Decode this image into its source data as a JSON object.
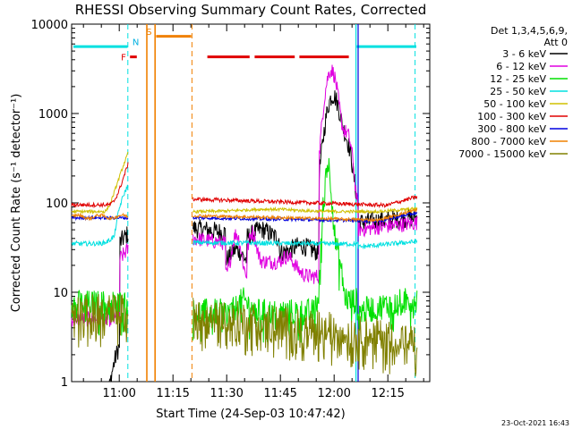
{
  "chart_data": {
    "type": "line",
    "title": "RHESSI Observing Summary Count Rates, Corrected",
    "xlabel": "Start Time (24-Sep-03 10:47:42)",
    "ylabel": "Corrected Count Rate (s⁻¹ detector⁻¹)",
    "yscale": "log",
    "ylim": [
      1,
      10000
    ],
    "xlim_min": [
      0,
      100
    ],
    "y_ticks": [
      "1",
      "10",
      "100",
      "1000",
      "10000"
    ],
    "x_ticks": [
      {
        "min": 13.3,
        "label": "11:00"
      },
      {
        "min": 28.3,
        "label": "11:15"
      },
      {
        "min": 43.3,
        "label": "11:30"
      },
      {
        "min": 58.3,
        "label": "11:45"
      },
      {
        "min": 73.3,
        "label": "12:00"
      },
      {
        "min": 88.3,
        "label": "12:15"
      }
    ],
    "legend_header": [
      "Det 1,3,4,5,6,9,",
      "Att 0"
    ],
    "series": [
      {
        "name": "3 - 6 keV",
        "color": "#000000"
      },
      {
        "name": "6 - 12 keV",
        "color": "#e000e0"
      },
      {
        "name": "12 - 25 keV",
        "color": "#00e000"
      },
      {
        "name": "25 - 50 keV",
        "color": "#00e0e0"
      },
      {
        "name": "50 - 100 keV",
        "color": "#d0c000"
      },
      {
        "name": "100 - 300 keV",
        "color": "#e00000"
      },
      {
        "name": "300 - 800 keV",
        "color": "#0000e0"
      },
      {
        "name": "800 - 7000 keV",
        "color": "#f08000"
      },
      {
        "name": "7000 - 15000 keV",
        "color": "#808000"
      }
    ],
    "flag_labels": {
      "flare": "F",
      "saa": "S",
      "night": "N"
    },
    "timestamp": "23-Oct-2021 16:43"
  }
}
